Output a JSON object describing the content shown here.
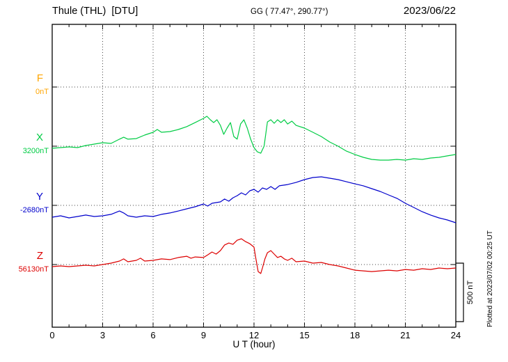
{
  "header": {
    "station": "Thule (THL)  [DTU]",
    "coords": "GG ( 77.47°, 290.77°)",
    "date": "2023/06/22"
  },
  "axes": {
    "x_label": "U T (hour)",
    "x_ticks": [
      0,
      3,
      6,
      9,
      12,
      15,
      18,
      21,
      24
    ],
    "x_minor_step_hours": 1,
    "x_range": [
      0,
      24
    ]
  },
  "scale_bar": {
    "label": "500 nT",
    "nT": 500
  },
  "footer_note": "Plotted at 2023/07/02 00:25 UT",
  "chart_data": {
    "type": "line",
    "title": "Thule (THL) [DTU] magnetogram 2023/06/22",
    "xlabel": "U T (hour)",
    "x_range": [
      0,
      24
    ],
    "x_tick_labels": [
      0,
      3,
      6,
      9,
      12,
      15,
      18,
      21,
      24
    ],
    "grid": "dotted vertical lines every 3 h; dotted horizontal line at each component baseline",
    "legend_position": "left margin (component letter above its baseline value)",
    "scale_nT_per_bar": 500,
    "series": [
      {
        "name": "F",
        "color": "#FFA500",
        "baseline_label": "0nT",
        "baseline_nT": 0,
        "points": []
      },
      {
        "name": "X",
        "color": "#00CC44",
        "baseline_label": "3200nT",
        "baseline_nT": 3200,
        "points": [
          [
            0,
            -18
          ],
          [
            0.5,
            -12
          ],
          [
            1,
            -6
          ],
          [
            1.5,
            -12
          ],
          [
            2,
            6
          ],
          [
            2.5,
            18
          ],
          [
            3,
            30
          ],
          [
            3.5,
            24
          ],
          [
            4,
            60
          ],
          [
            4.25,
            77
          ],
          [
            4.5,
            60
          ],
          [
            5,
            65
          ],
          [
            5.5,
            95
          ],
          [
            6,
            119
          ],
          [
            6.25,
            143
          ],
          [
            6.5,
            119
          ],
          [
            7,
            125
          ],
          [
            7.5,
            143
          ],
          [
            8,
            167
          ],
          [
            8.5,
            202
          ],
          [
            9,
            238
          ],
          [
            9.2,
            256
          ],
          [
            9.4,
            226
          ],
          [
            9.6,
            202
          ],
          [
            9.8,
            226
          ],
          [
            10,
            178
          ],
          [
            10.2,
            101
          ],
          [
            10.4,
            155
          ],
          [
            10.6,
            202
          ],
          [
            10.8,
            83
          ],
          [
            11,
            60
          ],
          [
            11.2,
            190
          ],
          [
            11.4,
            226
          ],
          [
            11.6,
            155
          ],
          [
            11.8,
            60
          ],
          [
            12,
            -12
          ],
          [
            12.2,
            -48
          ],
          [
            12.4,
            -60
          ],
          [
            12.6,
            0
          ],
          [
            12.8,
            208
          ],
          [
            13,
            226
          ],
          [
            13.2,
            196
          ],
          [
            13.4,
            226
          ],
          [
            13.6,
            202
          ],
          [
            13.8,
            226
          ],
          [
            14,
            190
          ],
          [
            14.25,
            214
          ],
          [
            14.5,
            178
          ],
          [
            15,
            155
          ],
          [
            15.5,
            119
          ],
          [
            16,
            83
          ],
          [
            16.5,
            36
          ],
          [
            17,
            0
          ],
          [
            17.5,
            -42
          ],
          [
            18,
            -71
          ],
          [
            18.5,
            -95
          ],
          [
            19,
            -113
          ],
          [
            19.5,
            -119
          ],
          [
            20,
            -119
          ],
          [
            20.5,
            -113
          ],
          [
            21,
            -119
          ],
          [
            21.5,
            -107
          ],
          [
            22,
            -113
          ],
          [
            22.5,
            -101
          ],
          [
            23,
            -95
          ],
          [
            23.5,
            -83
          ],
          [
            24,
            -71
          ]
        ]
      },
      {
        "name": "Y",
        "color": "#0000CC",
        "baseline_label": "-2680nT",
        "baseline_nT": -2680,
        "points": [
          [
            0,
            -101
          ],
          [
            0.5,
            -89
          ],
          [
            1,
            -107
          ],
          [
            1.5,
            -95
          ],
          [
            2,
            -83
          ],
          [
            2.5,
            -95
          ],
          [
            3,
            -89
          ],
          [
            3.5,
            -77
          ],
          [
            4,
            -48
          ],
          [
            4.25,
            -65
          ],
          [
            4.5,
            -89
          ],
          [
            5,
            -101
          ],
          [
            5.5,
            -89
          ],
          [
            6,
            -95
          ],
          [
            6.5,
            -77
          ],
          [
            7,
            -65
          ],
          [
            7.5,
            -48
          ],
          [
            8,
            -30
          ],
          [
            8.5,
            -12
          ],
          [
            9,
            12
          ],
          [
            9.25,
            -6
          ],
          [
            9.5,
            18
          ],
          [
            10,
            30
          ],
          [
            10.25,
            54
          ],
          [
            10.5,
            36
          ],
          [
            10.75,
            65
          ],
          [
            11,
            83
          ],
          [
            11.25,
            107
          ],
          [
            11.5,
            89
          ],
          [
            11.75,
            125
          ],
          [
            12,
            137
          ],
          [
            12.25,
            113
          ],
          [
            12.5,
            149
          ],
          [
            12.75,
            137
          ],
          [
            13,
            161
          ],
          [
            13.25,
            137
          ],
          [
            13.5,
            167
          ],
          [
            14,
            178
          ],
          [
            14.5,
            196
          ],
          [
            15,
            220
          ],
          [
            15.5,
            238
          ],
          [
            16,
            244
          ],
          [
            16.5,
            232
          ],
          [
            17,
            220
          ],
          [
            17.5,
            202
          ],
          [
            18,
            184
          ],
          [
            18.5,
            167
          ],
          [
            19,
            143
          ],
          [
            19.5,
            119
          ],
          [
            20,
            89
          ],
          [
            20.5,
            60
          ],
          [
            21,
            18
          ],
          [
            21.5,
            -18
          ],
          [
            22,
            -54
          ],
          [
            22.5,
            -83
          ],
          [
            23,
            -107
          ],
          [
            23.5,
            -125
          ],
          [
            24,
            -149
          ]
        ]
      },
      {
        "name": "Z",
        "color": "#DD0000",
        "baseline_label": "56130nT",
        "baseline_nT": 56130,
        "points": [
          [
            0,
            -18
          ],
          [
            0.5,
            -12
          ],
          [
            1,
            -18
          ],
          [
            1.5,
            -12
          ],
          [
            2,
            -6
          ],
          [
            2.5,
            -12
          ],
          [
            3,
            0
          ],
          [
            3.5,
            12
          ],
          [
            4,
            30
          ],
          [
            4.25,
            48
          ],
          [
            4.5,
            24
          ],
          [
            5,
            36
          ],
          [
            5.25,
            54
          ],
          [
            5.5,
            30
          ],
          [
            6,
            36
          ],
          [
            6.5,
            48
          ],
          [
            7,
            42
          ],
          [
            7.5,
            60
          ],
          [
            8,
            71
          ],
          [
            8.25,
            54
          ],
          [
            8.5,
            65
          ],
          [
            9,
            60
          ],
          [
            9.25,
            83
          ],
          [
            9.5,
            107
          ],
          [
            9.75,
            89
          ],
          [
            10,
            119
          ],
          [
            10.25,
            167
          ],
          [
            10.5,
            184
          ],
          [
            10.75,
            173
          ],
          [
            11,
            208
          ],
          [
            11.25,
            220
          ],
          [
            11.5,
            196
          ],
          [
            11.75,
            178
          ],
          [
            12,
            149
          ],
          [
            12.1,
            60
          ],
          [
            12.25,
            -60
          ],
          [
            12.4,
            -77
          ],
          [
            12.5,
            -30
          ],
          [
            12.65,
            48
          ],
          [
            12.8,
            101
          ],
          [
            13,
            119
          ],
          [
            13.2,
            89
          ],
          [
            13.4,
            60
          ],
          [
            13.6,
            71
          ],
          [
            13.8,
            48
          ],
          [
            14,
            36
          ],
          [
            14.25,
            54
          ],
          [
            14.5,
            24
          ],
          [
            15,
            30
          ],
          [
            15.5,
            12
          ],
          [
            16,
            18
          ],
          [
            16.5,
            0
          ],
          [
            17,
            -12
          ],
          [
            17.5,
            -30
          ],
          [
            18,
            -48
          ],
          [
            18.5,
            -54
          ],
          [
            19,
            -60
          ],
          [
            19.5,
            -54
          ],
          [
            20,
            -48
          ],
          [
            20.5,
            -54
          ],
          [
            21,
            -42
          ],
          [
            21.5,
            -48
          ],
          [
            22,
            -36
          ],
          [
            22.5,
            -42
          ],
          [
            23,
            -30
          ],
          [
            23.5,
            -36
          ],
          [
            24,
            -30
          ]
        ]
      }
    ]
  }
}
